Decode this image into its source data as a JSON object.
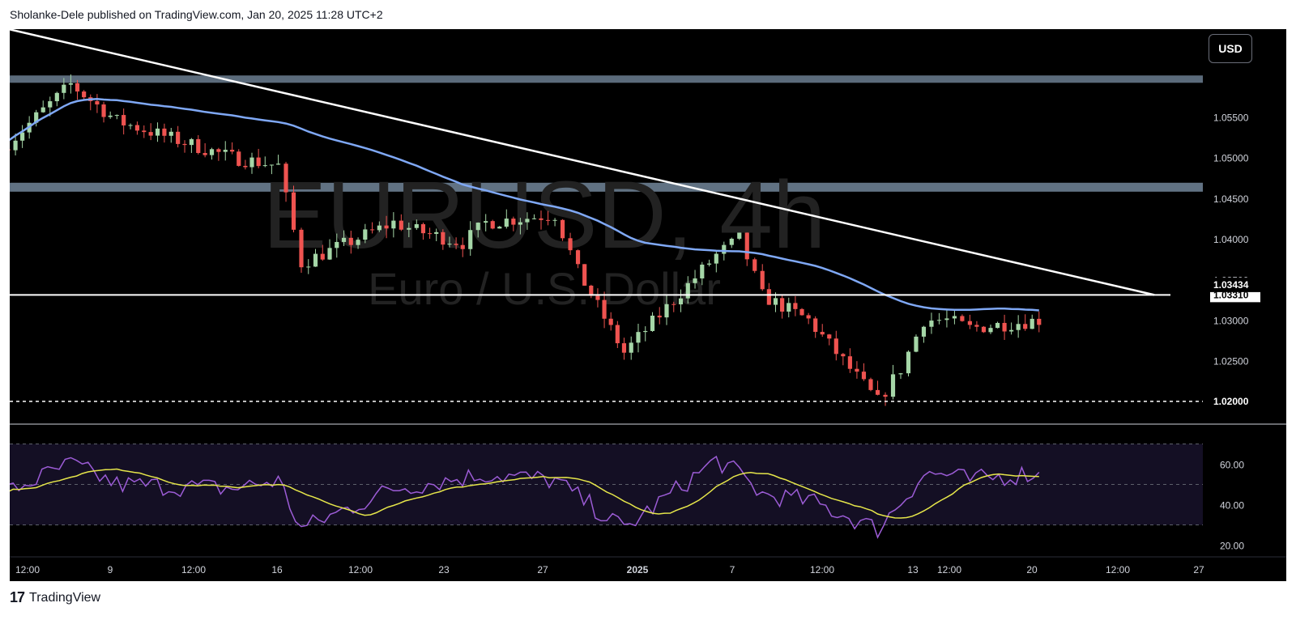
{
  "header": {
    "publisher": "Sholanke-Dele published on TradingView.com, Jan 20, 2025 11:28 UTC+2"
  },
  "footer": {
    "logo": "17",
    "brand": "TradingView"
  },
  "currency_button": "USD",
  "watermark": {
    "symbol": "EURUSD, 4h",
    "name": "Euro / U.S. Dollar"
  },
  "colors": {
    "background": "#000000",
    "up": "#a5d6a7",
    "down": "#ef5350",
    "ma": "#7fa8f5",
    "rsi": "#9c5cd6",
    "rsi_ma": "#e6e64a",
    "zone": "#6b7e91",
    "trendline": "#ffffff",
    "rsi_band": "#140f24"
  },
  "chart_data": [
    {
      "type": "candlestick",
      "symbol": "EURUSD",
      "timeframe": "4h",
      "title": "EURUSD, 4h",
      "subtitle": "Euro / U.S. Dollar",
      "ylim": [
        1.0174,
        1.0658
      ],
      "y_ticks": [
        "1.05500",
        "1.05000",
        "1.04500",
        "1.04000",
        "1.03500",
        "1.03000",
        "1.02500",
        "1.02000"
      ],
      "x_ticks": [
        "12:00",
        "9",
        "12:00",
        "16",
        "12:00",
        "23",
        "27",
        "2025",
        "7",
        "12:00",
        "13",
        "12:00",
        "20",
        "12:00",
        "27"
      ],
      "price_labels": {
        "current": "1.03434",
        "horizontal_line": "1.03310",
        "dashed_line": "1.02000"
      },
      "levels": {
        "resistance_zone_top": [
          1.0592,
          1.0601
        ],
        "supply_zone": [
          1.0458,
          1.0469
        ],
        "horizontal_line": 1.0331,
        "dashed_line": 1.02
      },
      "trendline": {
        "from": [
          "Dec 6",
          1.066
        ],
        "to": [
          "Jan 25",
          1.0331
        ]
      },
      "anchors": [
        [
          "Dec 6",
          1.051
        ],
        [
          "Dec 9",
          1.059
        ],
        [
          "Dec 11",
          1.0545
        ],
        [
          "Dec 16",
          1.05
        ],
        [
          "Dec 18",
          1.049
        ],
        [
          "Dec 19",
          1.037
        ],
        [
          "Dec 23",
          1.042
        ],
        [
          "Dec 24",
          1.041
        ],
        [
          "Dec 26",
          1.0395
        ],
        [
          "Dec 27",
          1.042
        ],
        [
          "Dec 30",
          1.043
        ],
        [
          "Dec 31",
          1.036
        ],
        [
          "Jan 2",
          1.026
        ],
        [
          "Jan 6",
          1.038
        ],
        [
          "Jan 7",
          1.04
        ],
        [
          "Jan 8",
          1.033
        ],
        [
          "Jan 10",
          1.03
        ],
        [
          "Jan 13",
          1.02
        ],
        [
          "Jan 14",
          1.024
        ],
        [
          "Jan 15",
          1.03
        ],
        [
          "Jan 16",
          1.03
        ],
        [
          "Jan 17",
          1.029
        ],
        [
          "Jan 20",
          1.03
        ]
      ]
    },
    {
      "type": "line",
      "name": "RSI",
      "ylim": [
        15,
        75
      ],
      "y_ticks": [
        "60.00",
        "40.00",
        "20.00"
      ],
      "band": [
        30,
        70
      ],
      "midline": 50,
      "anchors": [
        [
          "Dec 6",
          45
        ],
        [
          "Dec 9",
          60
        ],
        [
          "Dec 11",
          50
        ],
        [
          "Dec 16",
          48
        ],
        [
          "Dec 18",
          52
        ],
        [
          "Dec 19",
          28
        ],
        [
          "Dec 23",
          48
        ],
        [
          "Dec 27",
          55
        ],
        [
          "Dec 30",
          52
        ],
        [
          "Jan 2",
          28
        ],
        [
          "Jan 6",
          62
        ],
        [
          "Jan 7",
          55
        ],
        [
          "Jan 8",
          45
        ],
        [
          "Jan 10",
          42
        ],
        [
          "Jan 13",
          28
        ],
        [
          "Jan 15",
          55
        ],
        [
          "Jan 16",
          55
        ],
        [
          "Jan 17",
          52
        ],
        [
          "Jan 20",
          56
        ]
      ]
    }
  ]
}
